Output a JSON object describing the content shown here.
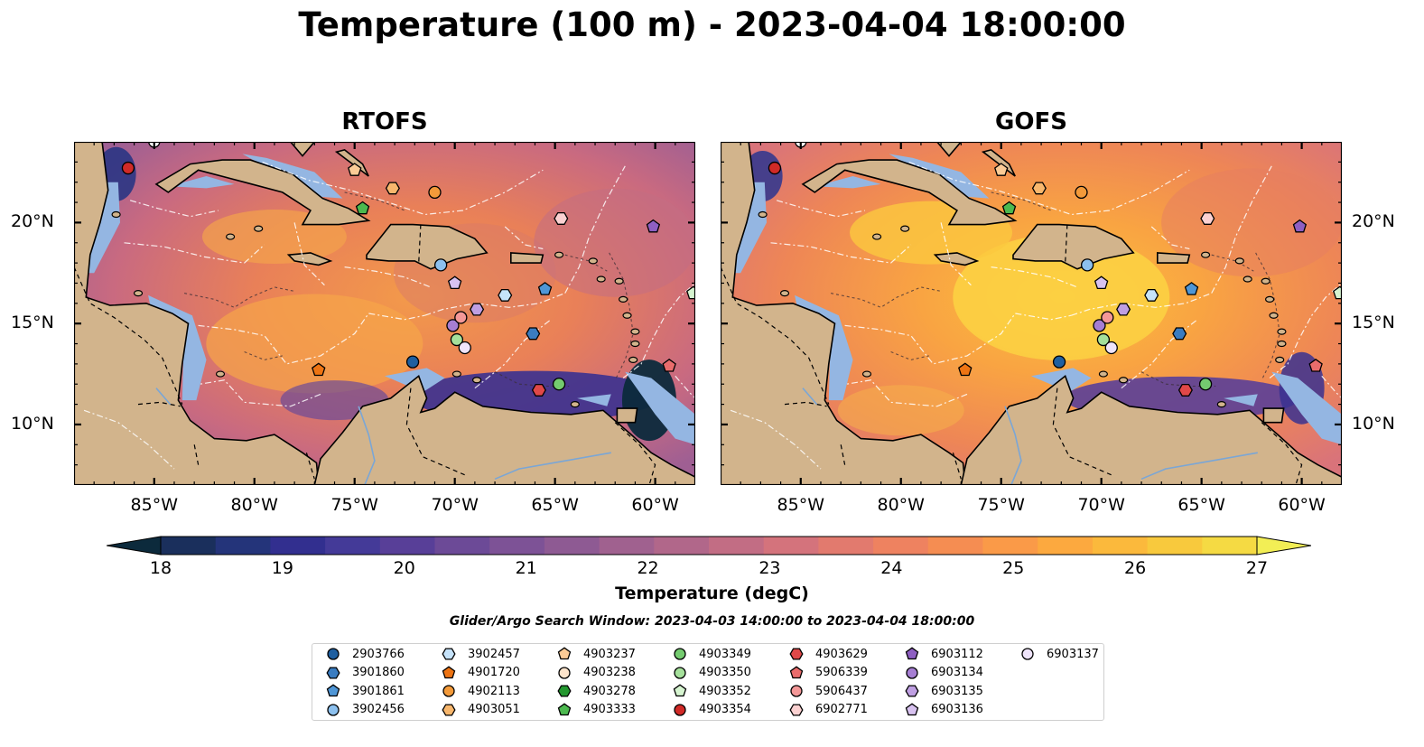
{
  "title": "Temperature (100 m) - 2023-04-04 18:00:00",
  "panels": [
    {
      "title": "RTOFS",
      "variant": "rtofs"
    },
    {
      "title": "GOFS",
      "variant": "gofs"
    }
  ],
  "map_extent": {
    "lon": [
      -89,
      -58
    ],
    "lat": [
      7,
      24
    ]
  },
  "lon_ticks": [
    "85°W",
    "80°W",
    "75°W",
    "70°W",
    "65°W",
    "60°W"
  ],
  "lon_tick_values": [
    -85,
    -80,
    -75,
    -70,
    -65,
    -60
  ],
  "lat_ticks": [
    "20°N",
    "15°N",
    "10°N"
  ],
  "lat_tick_values": [
    20,
    15,
    10
  ],
  "colorbar": {
    "label": "Temperature (degC)",
    "ticks": [
      "18",
      "19",
      "20",
      "21",
      "22",
      "23",
      "24",
      "25",
      "26",
      "27"
    ],
    "range": [
      18,
      27
    ],
    "colors": [
      "#0c2a3c",
      "#1a2f5c",
      "#24347a",
      "#322f8f",
      "#443a98",
      "#583f98",
      "#6c4a97",
      "#7d5296",
      "#8e5a93",
      "#a0618f",
      "#b1678a",
      "#c26d84",
      "#d4737c",
      "#e27a6e",
      "#ee8260",
      "#f58d52",
      "#fa9a48",
      "#fca93f",
      "#fbb93c",
      "#f8c93d",
      "#f5da43",
      "#f2ee55"
    ]
  },
  "search_window": "Glider/Argo Search Window: 2023-04-03 14:00:00 to 2023-04-04 18:00:00",
  "legend": [
    {
      "id": "2903766",
      "marker": "circle",
      "color": "#1f5fa0"
    },
    {
      "id": "3901860",
      "marker": "hexagon",
      "color": "#3a7cc0"
    },
    {
      "id": "3901861",
      "marker": "pentagon",
      "color": "#4f96d6"
    },
    {
      "id": "3902456",
      "marker": "circle",
      "color": "#8cc0ee"
    },
    {
      "id": "3902457",
      "marker": "hexagon",
      "color": "#c6e3fa"
    },
    {
      "id": "4901720",
      "marker": "pentagon",
      "color": "#ee7413"
    },
    {
      "id": "4902113",
      "marker": "circle",
      "color": "#f39a3a"
    },
    {
      "id": "4903051",
      "marker": "hexagon",
      "color": "#f8b76d"
    },
    {
      "id": "4903237",
      "marker": "pentagon",
      "color": "#fbcb96"
    },
    {
      "id": "4903238",
      "marker": "circle",
      "color": "#fde4cb"
    },
    {
      "id": "4903278",
      "marker": "hexagon",
      "color": "#23972f"
    },
    {
      "id": "4903333",
      "marker": "pentagon",
      "color": "#4cb94f"
    },
    {
      "id": "4903349",
      "marker": "circle",
      "color": "#74cb6f"
    },
    {
      "id": "4903350",
      "marker": "circle",
      "color": "#a5e09b"
    },
    {
      "id": "4903352",
      "marker": "pentagon",
      "color": "#d6f4d0"
    },
    {
      "id": "4903354",
      "marker": "circle",
      "color": "#d12a27"
    },
    {
      "id": "4903629",
      "marker": "hexagon",
      "color": "#e04848"
    },
    {
      "id": "5906339",
      "marker": "pentagon",
      "color": "#ea6c6c"
    },
    {
      "id": "5906437",
      "marker": "circle",
      "color": "#f49898"
    },
    {
      "id": "6902771",
      "marker": "hexagon",
      "color": "#fbd1d1"
    },
    {
      "id": "6903112",
      "marker": "pentagon",
      "color": "#8e5fc2"
    },
    {
      "id": "6903134",
      "marker": "circle",
      "color": "#a67ed3"
    },
    {
      "id": "6903135",
      "marker": "hexagon",
      "color": "#bf9fe2"
    },
    {
      "id": "6903136",
      "marker": "pentagon",
      "color": "#d8c2f0"
    },
    {
      "id": "6903137",
      "marker": "circle",
      "color": "#efe4fa"
    }
  ],
  "observations": [
    {
      "id": "4903354",
      "lon": -86.3,
      "lat": 22.7
    },
    {
      "id": "4903237",
      "lon": -75.0,
      "lat": 22.6
    },
    {
      "id": "4903051",
      "lon": -73.1,
      "lat": 21.7
    },
    {
      "id": "4902113",
      "lon": -71.0,
      "lat": 21.5
    },
    {
      "id": "4903333",
      "lon": -74.6,
      "lat": 20.7
    },
    {
      "id": "6902771",
      "lon": -64.7,
      "lat": 20.2
    },
    {
      "id": "6903112",
      "lon": -60.1,
      "lat": 19.8
    },
    {
      "id": "3902456",
      "lon": -70.7,
      "lat": 17.9
    },
    {
      "id": "6903136",
      "lon": -70.0,
      "lat": 17.0
    },
    {
      "id": "3902457",
      "lon": -67.5,
      "lat": 16.4
    },
    {
      "id": "3901861",
      "lon": -65.5,
      "lat": 16.7
    },
    {
      "id": "6903135",
      "lon": -68.9,
      "lat": 15.7
    },
    {
      "id": "6903134",
      "lon": -70.1,
      "lat": 14.9
    },
    {
      "id": "5906437",
      "lon": -69.7,
      "lat": 15.3
    },
    {
      "id": "4903350",
      "lon": -69.9,
      "lat": 14.2
    },
    {
      "id": "6903137",
      "lon": -69.5,
      "lat": 13.8
    },
    {
      "id": "3901860",
      "lon": -66.1,
      "lat": 14.5
    },
    {
      "id": "2903766",
      "lon": -72.1,
      "lat": 13.1
    },
    {
      "id": "4901720",
      "lon": -76.8,
      "lat": 12.7
    },
    {
      "id": "4903349",
      "lon": -64.8,
      "lat": 12.0
    },
    {
      "id": "4903629",
      "lon": -65.8,
      "lat": 11.7
    },
    {
      "id": "5906339",
      "lon": -59.3,
      "lat": 12.9
    },
    {
      "id": "4903352",
      "lon": -58.1,
      "lat": 16.5
    }
  ]
}
